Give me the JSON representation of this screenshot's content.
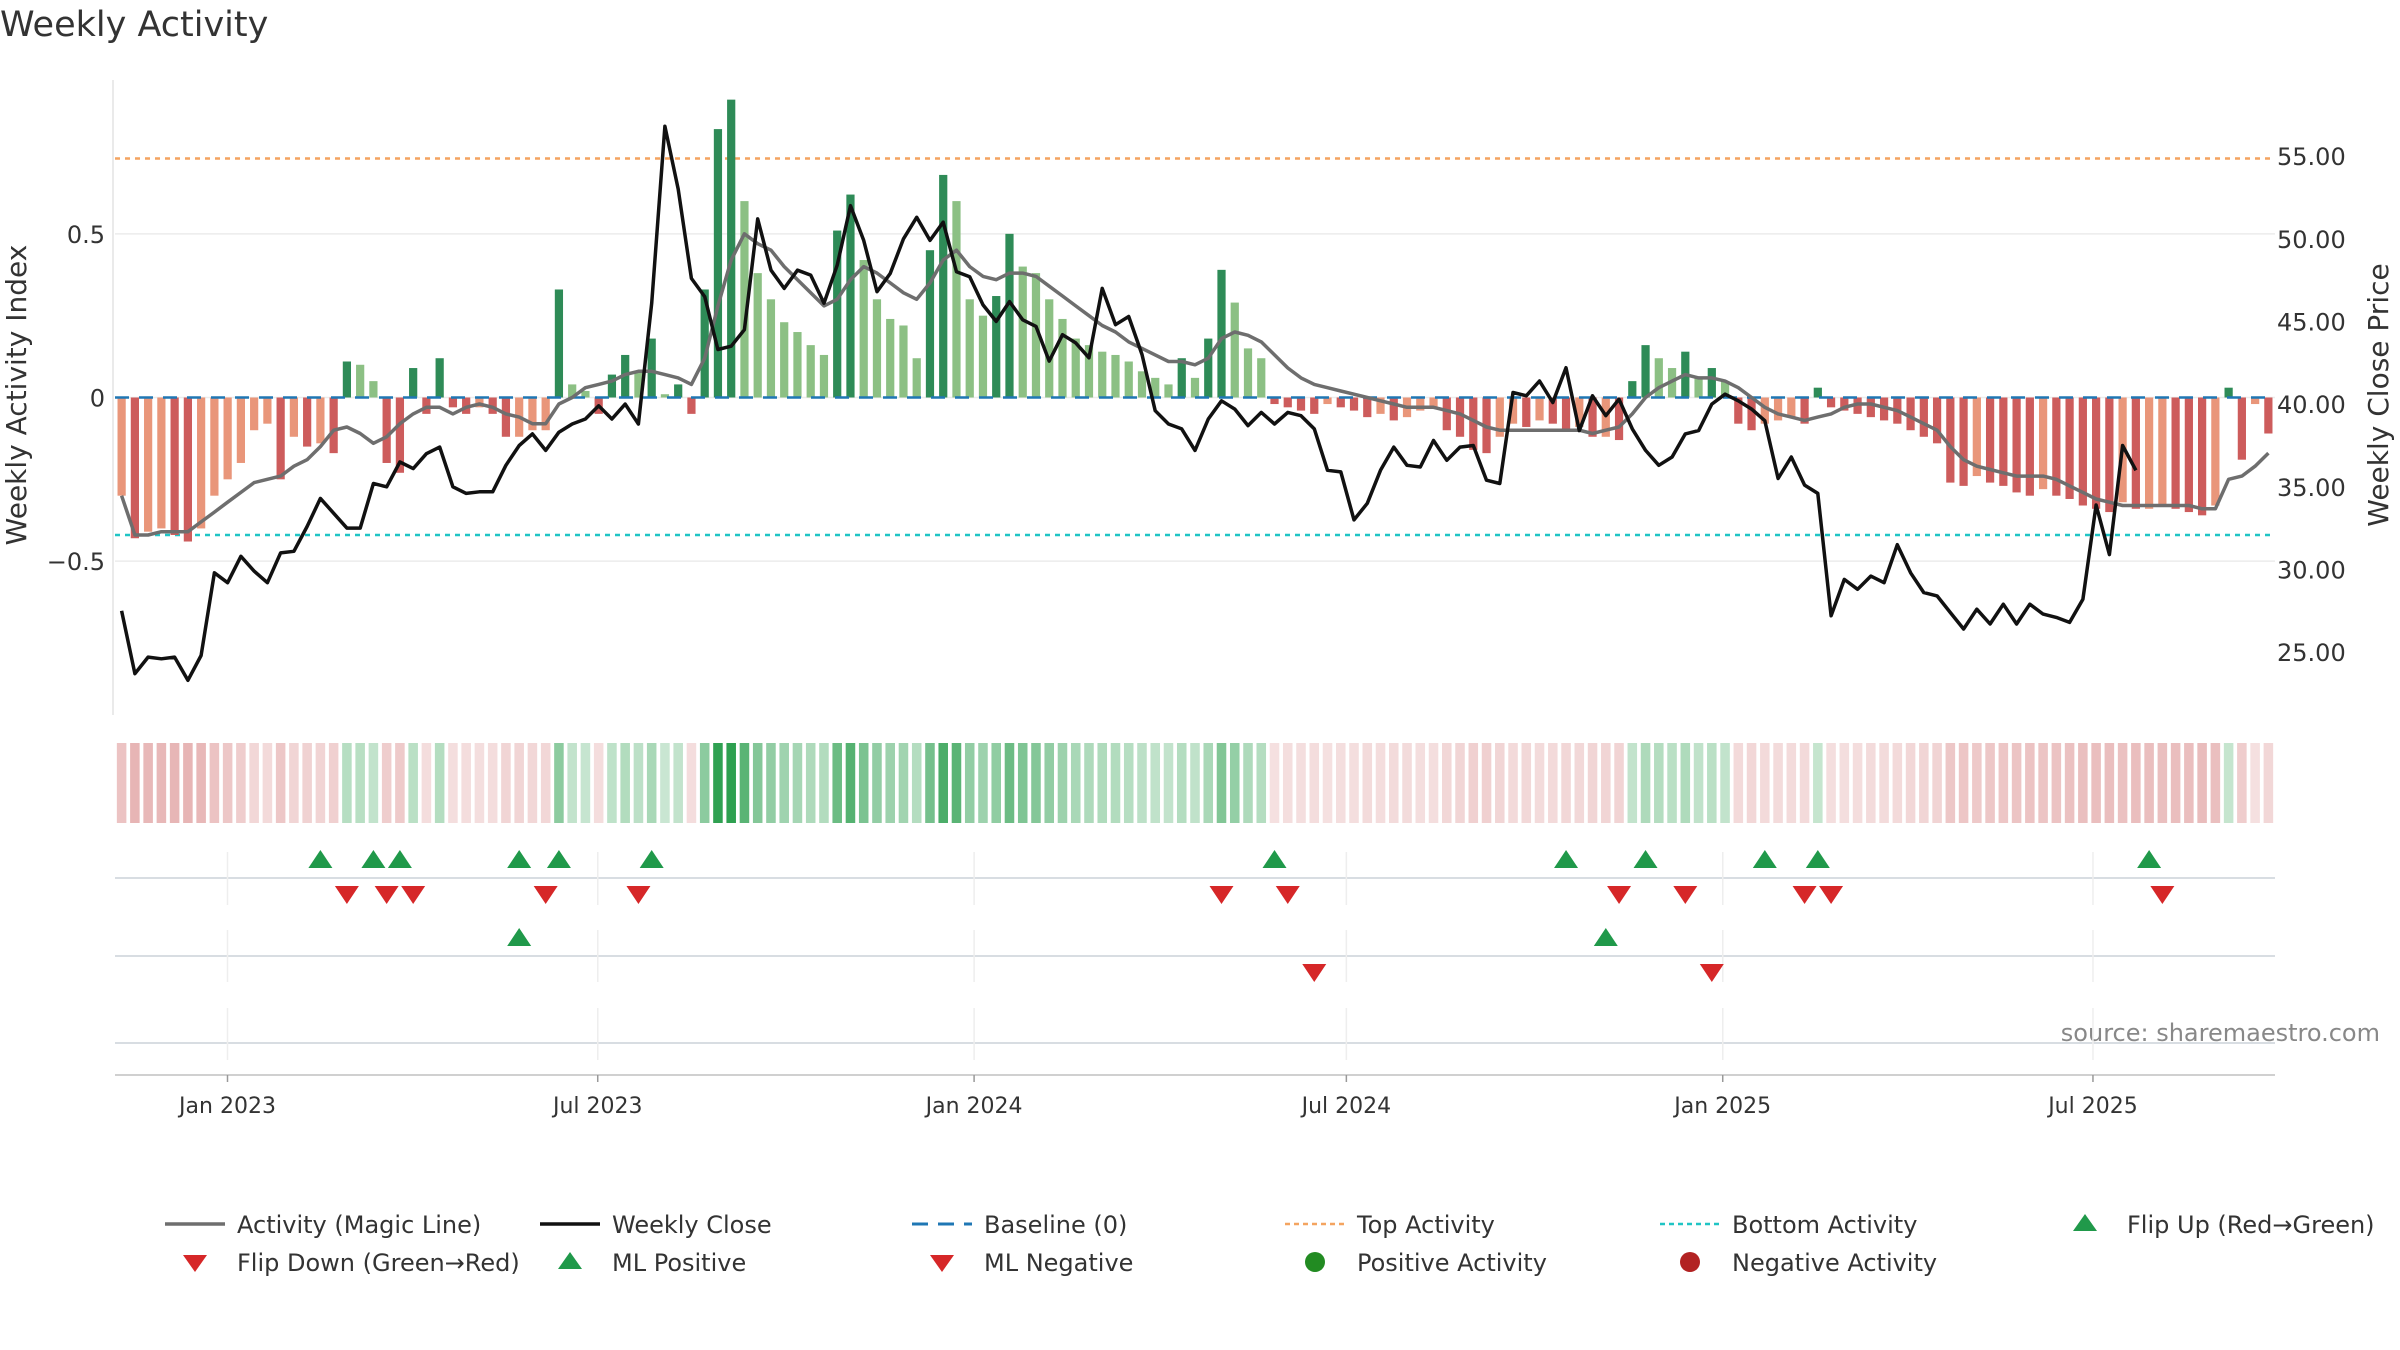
{
  "chart_data": {
    "type": "bar",
    "title": "Weekly Activity",
    "ylabel_left": "Weekly Activity Index",
    "ylabel_right": "Weekly Close Price",
    "source": "source: sharemaestro.com",
    "x_start_day": -55,
    "x_end_day": 1001,
    "ylim_left": [
      -0.97,
      0.97
    ],
    "ylim_right": [
      21.2,
      59.6
    ],
    "left_ticks": [
      {
        "v": 0.5,
        "label": "0.5"
      },
      {
        "v": 0,
        "label": "0"
      },
      {
        "v": -0.5,
        "label": "−0.5"
      }
    ],
    "right_ticks": [
      {
        "v": 55,
        "label": "55.00"
      },
      {
        "v": 50,
        "label": "50.00"
      },
      {
        "v": 45,
        "label": "45.00"
      },
      {
        "v": 40,
        "label": "40.00"
      },
      {
        "v": 35,
        "label": "35.00"
      },
      {
        "v": 30,
        "label": "30.00"
      },
      {
        "v": 25,
        "label": "25.00"
      }
    ],
    "x_ticks": [
      {
        "day": 0,
        "label": "Jan 2023"
      },
      {
        "day": 181,
        "label": "Jul 2023"
      },
      {
        "day": 365,
        "label": "Jan 2024"
      },
      {
        "day": 547,
        "label": "Jul 2024"
      },
      {
        "day": 731,
        "label": "Jan 2025"
      },
      {
        "day": 912,
        "label": "Jul 2025"
      }
    ],
    "top_activity": 0.73,
    "bottom_activity": -0.42,
    "baseline": 0,
    "activity": [
      -0.3,
      -0.43,
      -0.41,
      -0.4,
      -0.42,
      -0.44,
      -0.4,
      -0.3,
      -0.25,
      -0.2,
      -0.1,
      -0.08,
      -0.25,
      -0.12,
      -0.15,
      -0.14,
      -0.17,
      0.11,
      0.1,
      0.05,
      -0.2,
      -0.23,
      0.09,
      -0.05,
      0.12,
      -0.03,
      -0.05,
      -0.03,
      -0.05,
      -0.12,
      -0.12,
      -0.1,
      -0.1,
      0.33,
      0.04,
      0.02,
      -0.05,
      0.07,
      0.13,
      0.08,
      0.18,
      0.01,
      0.04,
      -0.05,
      0.33,
      0.82,
      0.91,
      0.6,
      0.38,
      0.3,
      0.23,
      0.2,
      0.16,
      0.13,
      0.51,
      0.62,
      0.42,
      0.3,
      0.24,
      0.22,
      0.12,
      0.45,
      0.68,
      0.6,
      0.3,
      0.25,
      0.31,
      0.5,
      0.4,
      0.38,
      0.3,
      0.24,
      0.18,
      0.16,
      0.14,
      0.13,
      0.11,
      0.08,
      0.06,
      0.04,
      0.12,
      0.06,
      0.18,
      0.39,
      0.29,
      0.15,
      0.12,
      -0.02,
      -0.03,
      -0.04,
      -0.05,
      -0.02,
      -0.03,
      -0.04,
      -0.06,
      -0.05,
      -0.07,
      -0.06,
      -0.04,
      -0.03,
      -0.1,
      -0.12,
      -0.16,
      -0.17,
      -0.12,
      -0.08,
      -0.09,
      -0.07,
      -0.08,
      -0.1,
      -0.09,
      -0.12,
      -0.12,
      -0.13,
      0.05,
      0.16,
      0.12,
      0.09,
      0.14,
      0.06,
      0.09,
      0.05,
      -0.08,
      -0.1,
      -0.08,
      -0.07,
      -0.06,
      -0.08,
      0.03,
      -0.03,
      -0.04,
      -0.05,
      -0.06,
      -0.07,
      -0.08,
      -0.1,
      -0.12,
      -0.14,
      -0.26,
      -0.27,
      -0.24,
      -0.26,
      -0.27,
      -0.29,
      -0.3,
      -0.28,
      -0.3,
      -0.31,
      -0.33,
      -0.34,
      -0.35,
      -0.32,
      -0.34,
      -0.34,
      -0.33,
      -0.34,
      -0.35,
      -0.36,
      -0.33,
      0.03,
      -0.19,
      -0.02,
      -0.11
    ],
    "magic_line": [
      -0.3,
      -0.42,
      -0.42,
      -0.41,
      -0.41,
      -0.41,
      -0.38,
      -0.35,
      -0.32,
      -0.29,
      -0.26,
      -0.25,
      -0.24,
      -0.21,
      -0.19,
      -0.15,
      -0.1,
      -0.09,
      -0.11,
      -0.14,
      -0.12,
      -0.08,
      -0.05,
      -0.03,
      -0.03,
      -0.05,
      -0.03,
      -0.02,
      -0.03,
      -0.05,
      -0.06,
      -0.08,
      -0.08,
      -0.02,
      0.0,
      0.03,
      0.04,
      0.05,
      0.07,
      0.08,
      0.08,
      0.07,
      0.06,
      0.04,
      0.12,
      0.28,
      0.42,
      0.5,
      0.47,
      0.45,
      0.4,
      0.36,
      0.32,
      0.28,
      0.3,
      0.36,
      0.4,
      0.38,
      0.35,
      0.32,
      0.3,
      0.35,
      0.42,
      0.45,
      0.4,
      0.37,
      0.36,
      0.38,
      0.38,
      0.37,
      0.34,
      0.31,
      0.28,
      0.25,
      0.22,
      0.2,
      0.17,
      0.15,
      0.13,
      0.11,
      0.11,
      0.1,
      0.12,
      0.18,
      0.2,
      0.19,
      0.17,
      0.13,
      0.09,
      0.06,
      0.04,
      0.03,
      0.02,
      0.01,
      0.0,
      -0.01,
      -0.02,
      -0.03,
      -0.03,
      -0.03,
      -0.04,
      -0.05,
      -0.07,
      -0.09,
      -0.1,
      -0.1,
      -0.1,
      -0.1,
      -0.1,
      -0.1,
      -0.1,
      -0.11,
      -0.1,
      -0.09,
      -0.05,
      0.0,
      0.03,
      0.05,
      0.07,
      0.06,
      0.06,
      0.05,
      0.03,
      0.0,
      -0.03,
      -0.05,
      -0.06,
      -0.07,
      -0.06,
      -0.05,
      -0.03,
      -0.02,
      -0.02,
      -0.03,
      -0.04,
      -0.06,
      -0.08,
      -0.1,
      -0.15,
      -0.19,
      -0.21,
      -0.22,
      -0.23,
      -0.24,
      -0.24,
      -0.24,
      -0.25,
      -0.27,
      -0.29,
      -0.31,
      -0.32,
      -0.33,
      -0.33,
      -0.33,
      -0.33,
      -0.33,
      -0.33,
      -0.34,
      -0.34,
      -0.25,
      -0.24,
      -0.21,
      -0.17
    ],
    "weekly_close": [
      27.5,
      23.7,
      24.7,
      24.6,
      24.7,
      23.3,
      24.8,
      29.8,
      29.2,
      30.8,
      29.9,
      29.2,
      31.0,
      31.1,
      32.6,
      34.3,
      33.4,
      32.5,
      32.5,
      35.2,
      35.0,
      36.5,
      36.1,
      37.0,
      37.4,
      35.0,
      34.6,
      34.7,
      34.7,
      36.3,
      37.5,
      38.2,
      37.2,
      38.3,
      38.8,
      39.1,
      39.9,
      39.1,
      40.0,
      38.8,
      46.1,
      56.8,
      53.0,
      47.6,
      46.5,
      43.3,
      43.5,
      44.5,
      51.2,
      48.1,
      47.0,
      48.1,
      47.8,
      46.1,
      48.4,
      52.0,
      49.9,
      46.8,
      47.9,
      50.0,
      51.3,
      49.9,
      51.0,
      48.0,
      47.7,
      46.0,
      45.0,
      46.2,
      45.1,
      44.7,
      42.6,
      44.2,
      43.7,
      42.8,
      47.0,
      44.8,
      45.3,
      43.0,
      39.6,
      38.8,
      38.5,
      37.2,
      39.1,
      40.2,
      39.7,
      38.7,
      39.5,
      38.8,
      39.5,
      39.3,
      38.5,
      36.0,
      35.9,
      33.0,
      34.0,
      36.0,
      37.4,
      36.3,
      36.2,
      37.8,
      36.6,
      37.4,
      37.5,
      35.4,
      35.2,
      40.7,
      40.5,
      41.4,
      40.1,
      42.2,
      38.4,
      40.5,
      39.3,
      40.3,
      38.5,
      37.2,
      36.3,
      36.8,
      38.2,
      38.4,
      40.0,
      40.6,
      40.2,
      39.7,
      39.0,
      35.5,
      36.8,
      35.1,
      34.6,
      27.2,
      29.4,
      28.8,
      29.6,
      29.2,
      31.5,
      29.8,
      28.6,
      28.4,
      27.4,
      26.4,
      27.6,
      26.7,
      27.9,
      26.7,
      27.9,
      27.3,
      27.1,
      26.8,
      28.2,
      33.9,
      30.9,
      37.5,
      36.0
    ],
    "color_strip": [
      -0.3,
      -0.43,
      -0.41,
      -0.4,
      -0.42,
      -0.44,
      -0.4,
      -0.3,
      -0.25,
      -0.2,
      -0.1,
      -0.08,
      -0.25,
      -0.12,
      -0.15,
      -0.14,
      -0.17,
      0.11,
      0.1,
      0.05,
      -0.2,
      -0.23,
      0.09,
      -0.05,
      0.12,
      -0.03,
      -0.05,
      -0.03,
      -0.05,
      -0.12,
      -0.12,
      -0.1,
      -0.1,
      0.33,
      0.04,
      0.02,
      -0.05,
      0.07,
      0.13,
      0.08,
      0.18,
      0.01,
      0.04,
      -0.05,
      0.33,
      0.82,
      0.91,
      0.6,
      0.38,
      0.3,
      0.23,
      0.2,
      0.16,
      0.13,
      0.51,
      0.62,
      0.42,
      0.3,
      0.24,
      0.22,
      0.12,
      0.45,
      0.68,
      0.6,
      0.3,
      0.25,
      0.31,
      0.5,
      0.4,
      0.38,
      0.3,
      0.24,
      0.18,
      0.16,
      0.14,
      0.13,
      0.11,
      0.08,
      0.06,
      0.04,
      0.12,
      0.06,
      0.18,
      0.39,
      0.29,
      0.15,
      0.12,
      -0.02,
      -0.03,
      -0.04,
      -0.05,
      -0.02,
      -0.03,
      -0.04,
      -0.06,
      -0.05,
      -0.07,
      -0.06,
      -0.04,
      -0.03,
      -0.1,
      -0.12,
      -0.16,
      -0.17,
      -0.12,
      -0.08,
      -0.09,
      -0.07,
      -0.08,
      -0.1,
      -0.09,
      -0.12,
      -0.12,
      -0.13,
      0.05,
      0.16,
      0.12,
      0.09,
      0.14,
      0.06,
      0.09,
      0.05,
      -0.08,
      -0.1,
      -0.08,
      -0.07,
      -0.06,
      -0.08,
      0.03,
      -0.03,
      -0.04,
      -0.05,
      -0.06,
      -0.07,
      -0.08,
      -0.1,
      -0.12,
      -0.14,
      -0.26,
      -0.27,
      -0.24,
      -0.26,
      -0.27,
      -0.29,
      -0.3,
      -0.28,
      -0.3,
      -0.31,
      -0.33,
      -0.34,
      -0.35,
      -0.32,
      -0.34,
      -0.34,
      -0.33,
      -0.34,
      -0.35,
      -0.36,
      -0.33,
      0.03,
      -0.19,
      -0.02,
      -0.11
    ],
    "flip_up_weeks": [
      15,
      19,
      21,
      30,
      33,
      40,
      87,
      109,
      115,
      124,
      128,
      153
    ],
    "flip_down_weeks": [
      17,
      20,
      22,
      32,
      39,
      83,
      88,
      113,
      118,
      127,
      129,
      154
    ],
    "ml_positive_weeks": [
      30,
      112
    ],
    "ml_negative_weeks": [
      90,
      120
    ],
    "positive_activity_weeks": [],
    "negative_activity_weeks": [],
    "colors": {
      "strong_green": "#2e8b57",
      "light_green": "#8cc084",
      "strong_red": "#cd5c5c",
      "light_red": "#e9967a",
      "magic_line": "#6e6e6e",
      "weekly_close": "#111111",
      "baseline": "#1f77b4",
      "top_activity": "#f4a460",
      "bottom_activity": "#20c5c5",
      "flip_up": "#20994a",
      "flip_down": "#d62728",
      "positive_activity": "#228b22",
      "negative_activity": "#b22222"
    },
    "legend": [
      {
        "key": "magic",
        "label": "Activity (Magic Line)"
      },
      {
        "key": "close",
        "label": "Weekly Close"
      },
      {
        "key": "baseline",
        "label": "Baseline (0)"
      },
      {
        "key": "top",
        "label": "Top Activity"
      },
      {
        "key": "bottom",
        "label": "Bottom Activity"
      },
      {
        "key": "flipup",
        "label": "Flip Up (Red→Green)"
      },
      {
        "key": "flipdown",
        "label": "Flip Down (Green→Red)"
      },
      {
        "key": "mlpos",
        "label": "ML Positive"
      },
      {
        "key": "mlneg",
        "label": "ML Negative"
      },
      {
        "key": "posact",
        "label": "Positive Activity"
      },
      {
        "key": "negact",
        "label": "Negative Activity"
      }
    ]
  }
}
